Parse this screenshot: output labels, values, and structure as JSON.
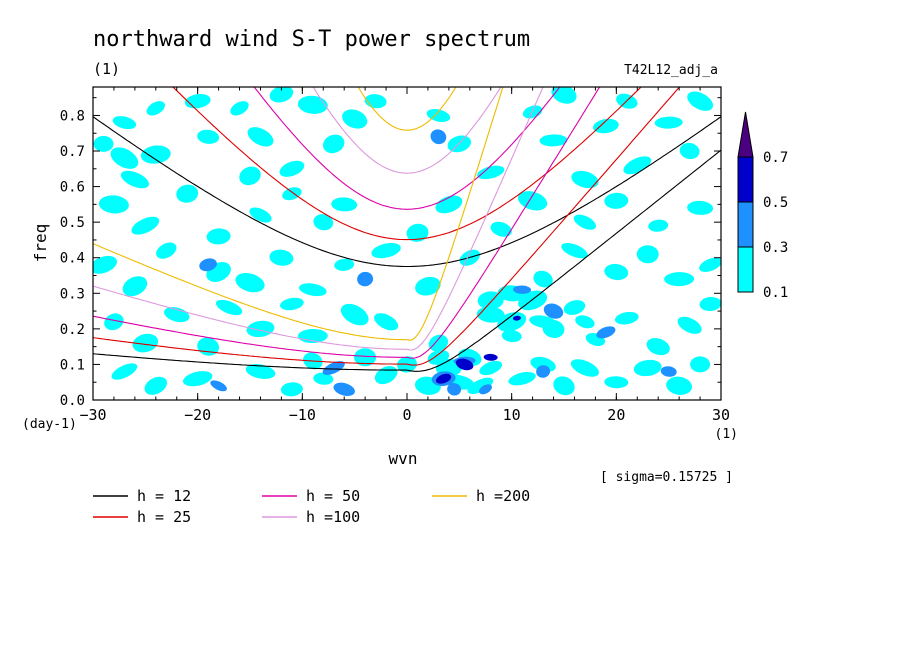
{
  "chart_data": {
    "type": "heatmap",
    "title": "northward wind S-T power spectrum",
    "subtitle": "(1)",
    "run_label": "T42L12_adj_a",
    "xlabel": "wvn",
    "ylabel": "freq",
    "x_unit": "(1)",
    "y_unit": "(day-1)",
    "xlim": [
      -30,
      30
    ],
    "ylim": [
      0,
      0.88
    ],
    "xticks": [
      -30,
      -20,
      -10,
      0,
      10,
      20,
      30
    ],
    "yticks": [
      0.0,
      0.1,
      0.2,
      0.3,
      0.4,
      0.5,
      0.6,
      0.7,
      0.8
    ],
    "sigma_note": "[ sigma=0.15725 ]",
    "colorbar": {
      "levels": [
        "0.1",
        "0.3",
        "0.5",
        "0.7"
      ],
      "colors": [
        "#00ffff",
        "#1e90ff",
        "#0000cd",
        "#4b0082"
      ]
    },
    "dispersion_curves": [
      {
        "name": "h = 12",
        "h": 12,
        "color": "#000000"
      },
      {
        "name": "h = 25",
        "h": 25,
        "color": "#dd0000"
      },
      {
        "name": "h = 50",
        "h": 50,
        "color": "#dd00aa"
      },
      {
        "name": "h =100",
        "h": 100,
        "color": "#dd99dd"
      },
      {
        "name": "h =200",
        "h": 200,
        "color": "#eebb00"
      }
    ],
    "spectrum_patches": [
      {
        "x": -27,
        "y": 0.78,
        "v": 0.15
      },
      {
        "x": -24,
        "y": 0.82,
        "v": 0.12
      },
      {
        "x": -29,
        "y": 0.72,
        "v": 0.13
      },
      {
        "x": -27,
        "y": 0.68,
        "v": 0.16
      },
      {
        "x": -24,
        "y": 0.69,
        "v": 0.14
      },
      {
        "x": -20,
        "y": 0.84,
        "v": 0.15
      },
      {
        "x": -19,
        "y": 0.74,
        "v": 0.12
      },
      {
        "x": -16,
        "y": 0.82,
        "v": 0.14
      },
      {
        "x": -14,
        "y": 0.74,
        "v": 0.15
      },
      {
        "x": -12,
        "y": 0.86,
        "v": 0.12
      },
      {
        "x": -9,
        "y": 0.83,
        "v": 0.15
      },
      {
        "x": -7,
        "y": 0.72,
        "v": 0.13
      },
      {
        "x": -5,
        "y": 0.79,
        "v": 0.12
      },
      {
        "x": -3,
        "y": 0.84,
        "v": 0.14
      },
      {
        "x": 3,
        "y": 0.8,
        "v": 0.13
      },
      {
        "x": 3,
        "y": 0.74,
        "v": 0.32
      },
      {
        "x": 5,
        "y": 0.72,
        "v": 0.14
      },
      {
        "x": 12,
        "y": 0.81,
        "v": 0.15
      },
      {
        "x": 14,
        "y": 0.73,
        "v": 0.12
      },
      {
        "x": 15,
        "y": 0.86,
        "v": 0.14
      },
      {
        "x": 19,
        "y": 0.77,
        "v": 0.13
      },
      {
        "x": 21,
        "y": 0.84,
        "v": 0.15
      },
      {
        "x": 22,
        "y": 0.66,
        "v": 0.12
      },
      {
        "x": 25,
        "y": 0.78,
        "v": 0.14
      },
      {
        "x": 27,
        "y": 0.7,
        "v": 0.12
      },
      {
        "x": 28,
        "y": 0.84,
        "v": 0.13
      },
      {
        "x": -28,
        "y": 0.55,
        "v": 0.13
      },
      {
        "x": -25,
        "y": 0.49,
        "v": 0.14
      },
      {
        "x": -21,
        "y": 0.58,
        "v": 0.12
      },
      {
        "x": -18,
        "y": 0.46,
        "v": 0.15
      },
      {
        "x": -14,
        "y": 0.52,
        "v": 0.12
      },
      {
        "x": -11,
        "y": 0.58,
        "v": 0.13
      },
      {
        "x": -8,
        "y": 0.5,
        "v": 0.14
      },
      {
        "x": -6,
        "y": 0.55,
        "v": 0.12
      },
      {
        "x": 1,
        "y": 0.47,
        "v": 0.14
      },
      {
        "x": 4,
        "y": 0.55,
        "v": 0.12
      },
      {
        "x": 9,
        "y": 0.48,
        "v": 0.13
      },
      {
        "x": 12,
        "y": 0.56,
        "v": 0.12
      },
      {
        "x": 17,
        "y": 0.5,
        "v": 0.14
      },
      {
        "x": 20,
        "y": 0.56,
        "v": 0.13
      },
      {
        "x": 24,
        "y": 0.49,
        "v": 0.12
      },
      {
        "x": 28,
        "y": 0.54,
        "v": 0.14
      },
      {
        "x": -29,
        "y": 0.38,
        "v": 0.14
      },
      {
        "x": -26,
        "y": 0.32,
        "v": 0.13
      },
      {
        "x": -23,
        "y": 0.42,
        "v": 0.12
      },
      {
        "x": -19,
        "y": 0.38,
        "v": 0.33
      },
      {
        "x": -18,
        "y": 0.36,
        "v": 0.15
      },
      {
        "x": -15,
        "y": 0.33,
        "v": 0.14
      },
      {
        "x": -12,
        "y": 0.4,
        "v": 0.12
      },
      {
        "x": -9,
        "y": 0.31,
        "v": 0.13
      },
      {
        "x": -6,
        "y": 0.38,
        "v": 0.14
      },
      {
        "x": -4,
        "y": 0.34,
        "v": 0.35
      },
      {
        "x": -2,
        "y": 0.42,
        "v": 0.13
      },
      {
        "x": 2,
        "y": 0.32,
        "v": 0.12
      },
      {
        "x": 6,
        "y": 0.4,
        "v": 0.14
      },
      {
        "x": 13,
        "y": 0.34,
        "v": 0.13
      },
      {
        "x": 16,
        "y": 0.42,
        "v": 0.12
      },
      {
        "x": 20,
        "y": 0.36,
        "v": 0.14
      },
      {
        "x": 23,
        "y": 0.41,
        "v": 0.13
      },
      {
        "x": 26,
        "y": 0.34,
        "v": 0.12
      },
      {
        "x": 29,
        "y": 0.38,
        "v": 0.13
      },
      {
        "x": -28,
        "y": 0.22,
        "v": 0.12
      },
      {
        "x": -25,
        "y": 0.16,
        "v": 0.14
      },
      {
        "x": -22,
        "y": 0.24,
        "v": 0.13
      },
      {
        "x": -19,
        "y": 0.15,
        "v": 0.12
      },
      {
        "x": -17,
        "y": 0.26,
        "v": 0.14
      },
      {
        "x": -14,
        "y": 0.2,
        "v": 0.13
      },
      {
        "x": -11,
        "y": 0.27,
        "v": 0.12
      },
      {
        "x": -9,
        "y": 0.18,
        "v": 0.14
      },
      {
        "x": -5,
        "y": 0.24,
        "v": 0.13
      },
      {
        "x": -2,
        "y": 0.22,
        "v": 0.12
      },
      {
        "x": 3,
        "y": 0.16,
        "v": 0.14
      },
      {
        "x": 8,
        "y": 0.24,
        "v": 0.12
      },
      {
        "x": 10,
        "y": 0.18,
        "v": 0.13
      },
      {
        "x": 12,
        "y": 0.28,
        "v": 0.12
      },
      {
        "x": 14,
        "y": 0.2,
        "v": 0.14
      },
      {
        "x": 16,
        "y": 0.26,
        "v": 0.13
      },
      {
        "x": 18,
        "y": 0.17,
        "v": 0.12
      },
      {
        "x": 21,
        "y": 0.23,
        "v": 0.14
      },
      {
        "x": 24,
        "y": 0.15,
        "v": 0.13
      },
      {
        "x": 27,
        "y": 0.21,
        "v": 0.14
      },
      {
        "x": 29,
        "y": 0.27,
        "v": 0.12
      },
      {
        "x": 10,
        "y": 0.3,
        "v": 0.14
      },
      {
        "x": 11,
        "y": 0.31,
        "v": 0.32
      },
      {
        "x": 8,
        "y": 0.28,
        "v": 0.13
      },
      {
        "x": 13,
        "y": 0.22,
        "v": 0.15
      },
      {
        "x": 14,
        "y": 0.25,
        "v": 0.33
      },
      {
        "x": 10,
        "y": 0.22,
        "v": 0.14
      },
      {
        "x": 17,
        "y": 0.22,
        "v": 0.14
      },
      {
        "x": 19,
        "y": 0.19,
        "v": 0.32
      },
      {
        "x": 10.5,
        "y": 0.23,
        "v": 0.55
      },
      {
        "x": -27,
        "y": 0.08,
        "v": 0.13
      },
      {
        "x": -24,
        "y": 0.04,
        "v": 0.12
      },
      {
        "x": -20,
        "y": 0.06,
        "v": 0.15
      },
      {
        "x": -18,
        "y": 0.04,
        "v": 0.35
      },
      {
        "x": -14,
        "y": 0.08,
        "v": 0.13
      },
      {
        "x": -11,
        "y": 0.03,
        "v": 0.14
      },
      {
        "x": -9,
        "y": 0.11,
        "v": 0.15
      },
      {
        "x": -8,
        "y": 0.06,
        "v": 0.16
      },
      {
        "x": -7,
        "y": 0.09,
        "v": 0.34
      },
      {
        "x": -6,
        "y": 0.03,
        "v": 0.32
      },
      {
        "x": -4,
        "y": 0.12,
        "v": 0.15
      },
      {
        "x": -2,
        "y": 0.07,
        "v": 0.14
      },
      {
        "x": 0,
        "y": 0.1,
        "v": 0.13
      },
      {
        "x": 3,
        "y": 0.12,
        "v": 0.16
      },
      {
        "x": 4,
        "y": 0.09,
        "v": 0.17
      },
      {
        "x": 5,
        "y": 0.05,
        "v": 0.18
      },
      {
        "x": 6,
        "y": 0.12,
        "v": 0.16
      },
      {
        "x": 7,
        "y": 0.04,
        "v": 0.17
      },
      {
        "x": 8,
        "y": 0.09,
        "v": 0.15
      },
      {
        "x": 2,
        "y": 0.04,
        "v": 0.14
      },
      {
        "x": 3.5,
        "y": 0.06,
        "v": 0.32
      },
      {
        "x": 5.5,
        "y": 0.11,
        "v": 0.33
      },
      {
        "x": 7.5,
        "y": 0.03,
        "v": 0.32
      },
      {
        "x": 4.5,
        "y": 0.03,
        "v": 0.34
      },
      {
        "x": 3.5,
        "y": 0.06,
        "v": 0.52
      },
      {
        "x": 5.5,
        "y": 0.1,
        "v": 0.54
      },
      {
        "x": 8,
        "y": 0.12,
        "v": 0.51
      },
      {
        "x": 11,
        "y": 0.06,
        "v": 0.14
      },
      {
        "x": 13,
        "y": 0.1,
        "v": 0.15
      },
      {
        "x": 15,
        "y": 0.04,
        "v": 0.13
      },
      {
        "x": 17,
        "y": 0.09,
        "v": 0.14
      },
      {
        "x": 20,
        "y": 0.05,
        "v": 0.13
      },
      {
        "x": 23,
        "y": 0.09,
        "v": 0.15
      },
      {
        "x": 26,
        "y": 0.04,
        "v": 0.12
      },
      {
        "x": 28,
        "y": 0.1,
        "v": 0.14
      },
      {
        "x": 13,
        "y": 0.08,
        "v": 0.31
      },
      {
        "x": 25,
        "y": 0.08,
        "v": 0.32
      },
      {
        "x": -15,
        "y": 0.63,
        "v": 0.14
      },
      {
        "x": -11,
        "y": 0.65,
        "v": 0.13
      },
      {
        "x": 8,
        "y": 0.64,
        "v": 0.12
      },
      {
        "x": 17,
        "y": 0.62,
        "v": 0.13
      },
      {
        "x": -26,
        "y": 0.62,
        "v": 0.12
      }
    ]
  }
}
